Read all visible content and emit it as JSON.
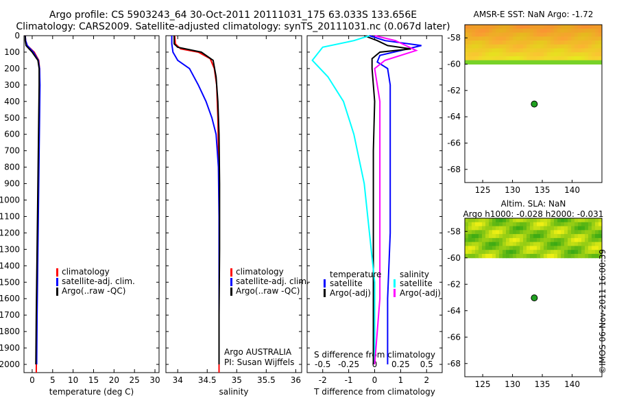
{
  "title_line1": "Argo profile: CS 5903243_64 30-Oct-2011 20111031_175 63.033S 133.656E",
  "title_line2": "Climatology: CARS2009. Satellite-adjusted climatology: synTS_20111031.nc (0.067d later)",
  "map1": {
    "title": "AMSR-E SST: NaN Argo: -1.72"
  },
  "map2": {
    "title1": "Altim. SLA: NaN",
    "title2": "Argo h1000: -0.028 h2000: -0.031"
  },
  "watermark": "©IMOS 06-Nov-2011 16:00:39",
  "colors": {
    "climatology": "#ff0000",
    "satellite": "#0000ff",
    "argo": "#000000",
    "sat_salt": "#00ffff",
    "argo_salt": "#ff00ff",
    "float": "#20a020"
  },
  "chart_data": [
    {
      "type": "line",
      "xlabel": "temperature (deg C)",
      "xlim": [
        -2,
        31
      ],
      "xticks": [
        0,
        5,
        10,
        15,
        20,
        25,
        30
      ],
      "ylim": [
        2050,
        0
      ],
      "yticks": [
        0,
        100,
        200,
        300,
        400,
        500,
        600,
        700,
        800,
        900,
        1000,
        1100,
        1200,
        1300,
        1400,
        1500,
        1600,
        1700,
        1800,
        1900,
        2000
      ],
      "legend": [
        "climatology",
        "satellite-adj. clim.",
        "Argo(..raw -QC)"
      ],
      "series": [
        {
          "name": "climatology",
          "color": "red",
          "x": [
            -1.7,
            -1.6,
            -1.2,
            0.5,
            1.6,
            1.8,
            1.8,
            1.7,
            1.6,
            1.5,
            1.4,
            1.3,
            1.2,
            1.1,
            1.0
          ],
          "y": [
            0,
            30,
            60,
            100,
            150,
            200,
            300,
            500,
            700,
            900,
            1100,
            1300,
            1500,
            1700,
            2050
          ]
        },
        {
          "name": "satellite-adj. clim.",
          "color": "blue",
          "x": [
            -1.7,
            -1.6,
            -1.2,
            0.3,
            1.5,
            1.8,
            1.9,
            1.8,
            1.7,
            1.6,
            1.5,
            1.4,
            1.3,
            1.2,
            1.1
          ],
          "y": [
            0,
            30,
            60,
            100,
            150,
            200,
            300,
            500,
            700,
            900,
            1100,
            1300,
            1500,
            1700,
            2000
          ]
        },
        {
          "name": "Argo(..raw -QC)",
          "color": "black",
          "x": [
            -1.7,
            -1.7,
            -1.5,
            0.0,
            1.4,
            1.7,
            1.7,
            1.6,
            1.5,
            1.4,
            1.3,
            1.2,
            1.1,
            1.0,
            0.9
          ],
          "y": [
            0,
            30,
            60,
            100,
            150,
            200,
            300,
            500,
            700,
            900,
            1100,
            1300,
            1500,
            1700,
            2000
          ]
        }
      ]
    },
    {
      "type": "line",
      "xlabel": "salinity",
      "xlim": [
        33.8,
        36.1
      ],
      "xticks": [
        34,
        34.5,
        35,
        35.5,
        36
      ],
      "ylim": [
        2050,
        0
      ],
      "annotation": [
        "Argo AUSTRALIA",
        "PI: Susan Wijffels"
      ],
      "legend": [
        "climatology",
        "satellite-adj. clim.",
        "Argo(..raw -QC)"
      ],
      "series": [
        {
          "name": "climatology",
          "color": "red",
          "x": [
            33.95,
            33.96,
            34.05,
            34.35,
            34.55,
            34.62,
            34.66,
            34.68,
            34.69,
            34.7,
            34.7,
            34.7,
            34.7,
            34.7
          ],
          "y": [
            0,
            50,
            80,
            100,
            140,
            200,
            300,
            500,
            700,
            1000,
            1300,
            1600,
            1900,
            2050
          ]
        },
        {
          "name": "satellite-adj. clim.",
          "color": "blue",
          "x": [
            33.9,
            33.9,
            33.92,
            34.0,
            34.2,
            34.35,
            34.48,
            34.58,
            34.65,
            34.69,
            34.7,
            34.7,
            34.7
          ],
          "y": [
            0,
            50,
            100,
            150,
            200,
            300,
            400,
            500,
            600,
            800,
            1100,
            1500,
            2000
          ]
        },
        {
          "name": "Argo(..raw -QC)",
          "color": "black",
          "x": [
            33.94,
            33.94,
            34.0,
            34.4,
            34.6,
            34.65,
            34.68,
            34.7,
            34.71,
            34.71,
            34.7,
            34.7
          ],
          "y": [
            0,
            50,
            70,
            100,
            150,
            250,
            400,
            600,
            900,
            1300,
            1700,
            2000
          ]
        }
      ]
    },
    {
      "type": "line",
      "xlabel": "T difference from climatology",
      "xlabel_top": "S difference from climatology",
      "xlim": [
        -2.6,
        2.6
      ],
      "xticks": [
        -2,
        -1,
        0,
        1,
        2
      ],
      "xticks_top": [
        -0.5,
        -0.25,
        0,
        0.25,
        0.5
      ],
      "ylim": [
        2050,
        0
      ],
      "legend_temperature": [
        "temperature",
        "satellite",
        "Argo(-adj)"
      ],
      "legend_salinity": [
        "salinity",
        "satellite",
        "Argo(-adj)"
      ],
      "series": [
        {
          "name": "T satellite",
          "color": "blue",
          "x": [
            -0.2,
            0.4,
            1.8,
            1.0,
            0.2,
            0.1,
            0.5,
            0.6,
            0.6,
            0.6,
            0.6,
            0.5,
            0.5
          ],
          "y": [
            0,
            30,
            60,
            90,
            120,
            160,
            200,
            300,
            500,
            800,
            1200,
            1600,
            2000
          ]
        },
        {
          "name": "T Argo(-adj)",
          "color": "black",
          "x": [
            -0.4,
            0.1,
            0.5,
            1.4,
            0.2,
            -0.1,
            -0.1,
            0.0,
            -0.05,
            -0.05,
            -0.05,
            -0.05
          ],
          "y": [
            0,
            30,
            60,
            80,
            100,
            140,
            200,
            400,
            700,
            1100,
            1500,
            2000
          ]
        },
        {
          "name": "S satellite",
          "color": "cyan",
          "x": [
            -0.05,
            -0.2,
            -0.5,
            -0.6,
            -0.45,
            -0.3,
            -0.2,
            -0.1,
            -0.05,
            0.0,
            0.0,
            0.0
          ],
          "y": [
            0,
            30,
            70,
            150,
            250,
            400,
            600,
            900,
            1200,
            1500,
            1800,
            2000
          ]
        },
        {
          "name": "S Argo(-adj)",
          "color": "magenta",
          "x": [
            0.0,
            0.2,
            0.3,
            0.4,
            0.1,
            0.0,
            0.05,
            0.05,
            0.05,
            0.05,
            0.0
          ],
          "y": [
            0,
            30,
            60,
            90,
            150,
            200,
            400,
            800,
            1200,
            1600,
            2000
          ]
        }
      ]
    },
    {
      "type": "heatmap",
      "title": "AMSR-E SST: NaN Argo: -1.72",
      "xlim": [
        122,
        145
      ],
      "xticks": [
        125,
        130,
        135,
        140
      ],
      "ylim": [
        -69,
        -57
      ],
      "yticks": [
        -58,
        -60,
        -62,
        -64,
        -66,
        -68
      ],
      "data_extent_lat": [
        -60,
        -57
      ],
      "argo_position": {
        "lon": 133.656,
        "lat": -63.033
      }
    },
    {
      "type": "heatmap",
      "title": "Altim. SLA: NaN",
      "subtitle": "Argo h1000: -0.028 h2000: -0.031",
      "xlim": [
        122,
        145
      ],
      "xticks": [
        125,
        130,
        135,
        140
      ],
      "ylim": [
        -69,
        -57
      ],
      "yticks": [
        -58,
        -60,
        -62,
        -64,
        -66,
        -68
      ],
      "data_extent_lat": [
        -60,
        -57
      ],
      "argo_position": {
        "lon": 133.656,
        "lat": -63.033
      }
    }
  ]
}
